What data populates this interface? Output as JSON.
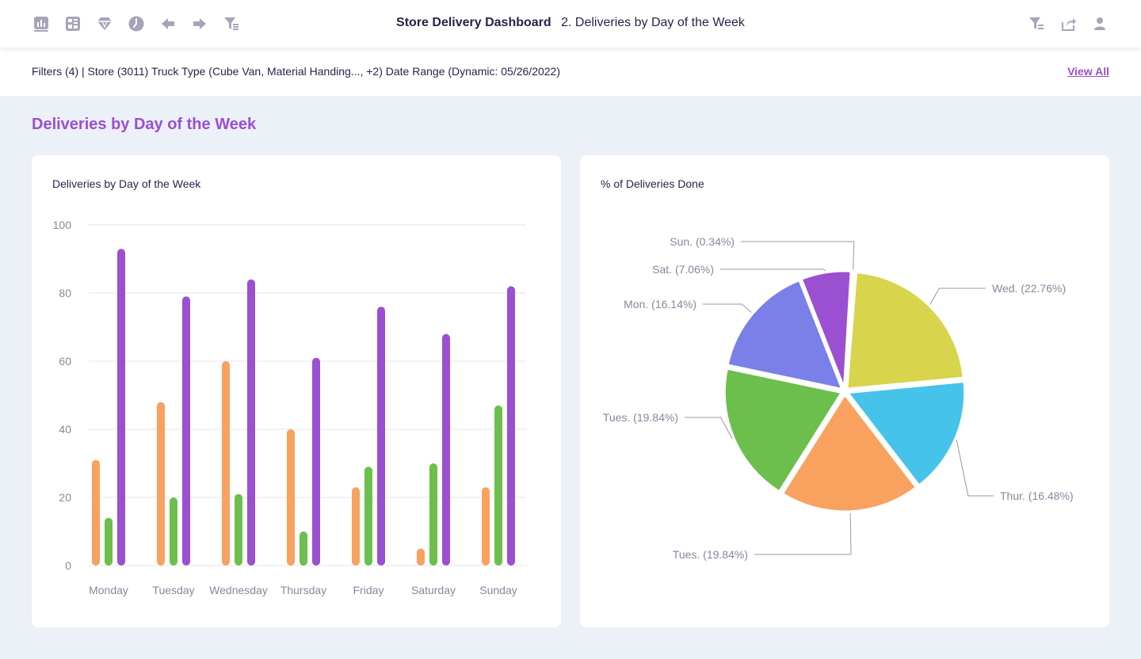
{
  "header": {
    "title": "Store Delivery Dashboard",
    "subtitle": "2. Deliveries by Day of the Week",
    "left_icons": [
      "bar-chart-icon",
      "dashboard-grid-icon",
      "diamond-icon",
      "clock-icon",
      "arrow-left-icon",
      "arrow-right-icon",
      "filter-list-icon"
    ],
    "right_icons": [
      "filter-icon",
      "share-icon",
      "user-icon"
    ]
  },
  "filters": {
    "text": "Filters (4) | Store (3011)  Truck Type (Cube Van, Material Handing..., +2) Date Range (Dynamic: 05/26/2022)",
    "view_all_label": "View All"
  },
  "section": {
    "title": "Deliveries by Day of the Week"
  },
  "colors": {
    "orange": "#f9a15f",
    "green": "#6cbf4c",
    "purple": "#9b4fd1",
    "yellow": "#d8d44b",
    "cyan": "#45c3ea",
    "blue": "#7a80e8",
    "teal": "#3ec39a"
  },
  "bar_card": {
    "title": "Deliveries by Day of the Week"
  },
  "pie_card": {
    "title": "% of Deliveries Done"
  },
  "chart_data": [
    {
      "type": "bar",
      "title": "Deliveries by Day of the Week",
      "categories": [
        "Monday",
        "Tuesday",
        "Wednesday",
        "Thursday",
        "Friday",
        "Saturday",
        "Sunday"
      ],
      "series": [
        {
          "values": [
            31,
            48,
            60,
            40,
            23,
            5,
            23
          ],
          "color": "#f9a15f"
        },
        {
          "values": [
            14,
            20,
            21,
            10,
            29,
            30,
            47
          ],
          "color": "#6cbf4c"
        },
        {
          "values": [
            93,
            79,
            84,
            61,
            76,
            68,
            82
          ],
          "color": "#9b4fd1"
        }
      ],
      "yticks": [
        "0",
        "20",
        "40",
        "60",
        "80",
        "100"
      ],
      "ylim": [
        0,
        100
      ],
      "grid": true
    },
    {
      "type": "pie",
      "title": "% of Deliveries Done",
      "slices": [
        {
          "label": "Wed. (22.76%)",
          "value": 22.76,
          "color": "#d8d44b"
        },
        {
          "label": "Thur. (16.48%)",
          "value": 16.48,
          "color": "#45c3ea"
        },
        {
          "label": "Tues. (19.84%)",
          "value": 19.84,
          "color": "#f9a15f"
        },
        {
          "label": "Tues. (19.84%)",
          "value": 19.84,
          "color": "#6cbf4c"
        },
        {
          "label": "Mon. (16.14%)",
          "value": 16.14,
          "color": "#7a80e8"
        },
        {
          "label": "Sat. (7.06%)",
          "value": 7.06,
          "color": "#9b4fd1"
        },
        {
          "label": "Sun. (0.34%)",
          "value": 0.34,
          "color": "#3ec39a"
        }
      ]
    }
  ]
}
